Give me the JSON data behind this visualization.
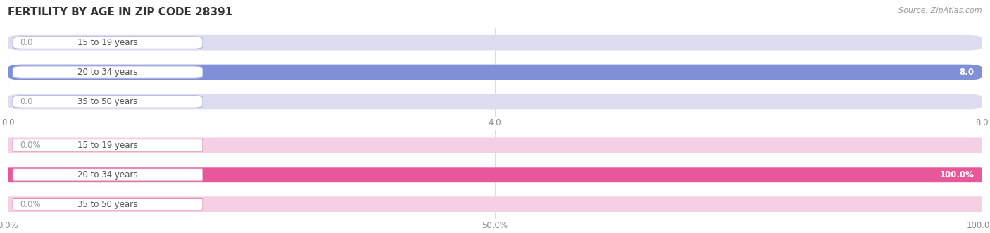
{
  "title": "FERTILITY BY AGE IN ZIP CODE 28391",
  "source_text": "Source: ZipAtlas.com",
  "top_chart": {
    "categories": [
      "15 to 19 years",
      "20 to 34 years",
      "35 to 50 years"
    ],
    "values": [
      0.0,
      8.0,
      0.0
    ],
    "xlim": [
      0,
      8.0
    ],
    "xticks": [
      0.0,
      4.0,
      8.0
    ],
    "xticklabels": [
      "0.0",
      "4.0",
      "8.0"
    ],
    "bar_color": "#8090d8",
    "bar_bg_color": "#ddddf0",
    "value_label_inside_color": "#ffffff",
    "value_label_outside_color": "#999999",
    "label_box_border_color": "#aab0e0"
  },
  "bottom_chart": {
    "categories": [
      "15 to 19 years",
      "20 to 34 years",
      "35 to 50 years"
    ],
    "values": [
      0.0,
      100.0,
      0.0
    ],
    "xlim": [
      0,
      100.0
    ],
    "xticks": [
      0.0,
      50.0,
      100.0
    ],
    "xticklabels": [
      "0.0%",
      "50.0%",
      "100.0%"
    ],
    "bar_color": "#e8579a",
    "bar_bg_color": "#f5d0e4",
    "value_label_inside_color": "#ffffff",
    "value_label_outside_color": "#999999",
    "label_box_border_color": "#e090b8"
  },
  "fig_bg_color": "#ffffff",
  "title_fontsize": 11,
  "tick_fontsize": 8.5,
  "label_fontsize": 8.5,
  "bar_height": 0.52,
  "grid_color": "#dddddd",
  "label_text_color": "#555555"
}
